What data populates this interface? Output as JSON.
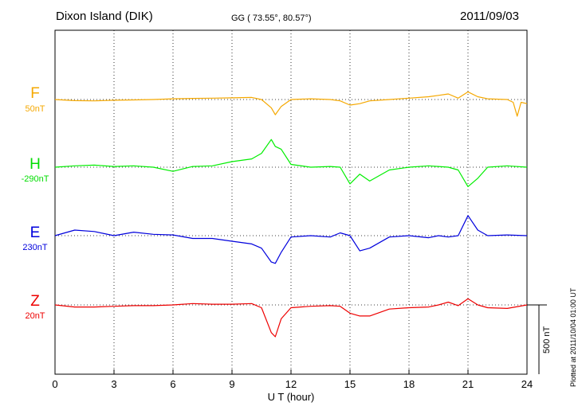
{
  "header": {
    "station": "Dixon Island (DIK)",
    "coords": "GG ( 73.55°,  80.57°)",
    "date": "2011/09/03"
  },
  "side_note": "Plotted at 2011/10/04 01:00 UT",
  "scale_label": "500 nT",
  "components": [
    {
      "name": "F",
      "offset": "50nT",
      "color": "#f5a800"
    },
    {
      "name": "H",
      "offset": "-290nT",
      "color": "#00ee00"
    },
    {
      "name": "E",
      "offset": "230nT",
      "color": "#0000dd"
    },
    {
      "name": "Z",
      "offset": "20nT",
      "color": "#ee0000"
    }
  ],
  "chart_data": {
    "type": "line",
    "xlabel": "U T (hour)",
    "xlim": [
      0,
      24
    ],
    "xticks": [
      "0",
      "3",
      "6",
      "9",
      "12",
      "15",
      "18",
      "21",
      "24"
    ],
    "ylabel": "",
    "scale_bar_nT": 500,
    "grid": true,
    "series": [
      {
        "name": "F",
        "x": [
          0,
          1,
          2,
          3,
          4,
          5,
          6,
          7,
          8,
          9,
          10,
          10.5,
          11,
          11.2,
          11.5,
          12,
          13,
          14,
          14.5,
          15,
          15.5,
          16,
          17,
          18,
          19,
          19.5,
          20,
          20.5,
          21,
          21.5,
          22,
          23,
          23.3,
          23.5,
          23.7,
          24
        ],
        "values": [
          0,
          -8,
          -10,
          -5,
          -3,
          0,
          5,
          8,
          10,
          12,
          15,
          0,
          -60,
          -110,
          -50,
          0,
          5,
          0,
          -10,
          -40,
          -30,
          -10,
          0,
          10,
          20,
          30,
          40,
          10,
          55,
          20,
          5,
          0,
          -20,
          -120,
          -20,
          -30
        ]
      },
      {
        "name": "H",
        "x": [
          0,
          1,
          2,
          3,
          4,
          5,
          6,
          7,
          8,
          9,
          10,
          10.5,
          11,
          11.2,
          11.5,
          12,
          13,
          14,
          14.5,
          15,
          15.5,
          16,
          17,
          18,
          19,
          19.5,
          20,
          20.5,
          21,
          21.5,
          22,
          23,
          24
        ],
        "values": [
          0,
          10,
          15,
          5,
          10,
          0,
          -30,
          5,
          10,
          40,
          60,
          100,
          200,
          150,
          130,
          20,
          0,
          5,
          0,
          -120,
          -50,
          -100,
          -20,
          0,
          10,
          5,
          0,
          -20,
          -140,
          -80,
          0,
          10,
          0
        ]
      },
      {
        "name": "E",
        "x": [
          0,
          1,
          2,
          3,
          4,
          5,
          6,
          7,
          8,
          9,
          10,
          10.5,
          11,
          11.2,
          11.5,
          12,
          13,
          14,
          14.5,
          15,
          15.5,
          16,
          17,
          18,
          19,
          19.5,
          20,
          20.5,
          21,
          21.5,
          22,
          23,
          24
        ],
        "values": [
          0,
          40,
          30,
          0,
          25,
          10,
          5,
          -20,
          -20,
          -40,
          -60,
          -90,
          -190,
          -200,
          -120,
          -10,
          0,
          -10,
          20,
          0,
          -110,
          -90,
          -10,
          0,
          -15,
          0,
          -10,
          0,
          145,
          40,
          0,
          5,
          0
        ]
      },
      {
        "name": "Z",
        "x": [
          0,
          1,
          2,
          3,
          4,
          5,
          6,
          7,
          8,
          9,
          10,
          10.5,
          11,
          11.2,
          11.5,
          12,
          13,
          14,
          14.5,
          15,
          15.5,
          16,
          17,
          18,
          19,
          19.5,
          20,
          20.5,
          21,
          21.5,
          22,
          23,
          24
        ],
        "values": [
          0,
          -15,
          -15,
          -10,
          -5,
          -5,
          0,
          10,
          5,
          5,
          10,
          -20,
          -200,
          -230,
          -100,
          -20,
          -10,
          -5,
          -10,
          -60,
          -80,
          -80,
          -30,
          -20,
          -15,
          0,
          20,
          -5,
          45,
          0,
          -20,
          -25,
          0
        ]
      }
    ]
  }
}
